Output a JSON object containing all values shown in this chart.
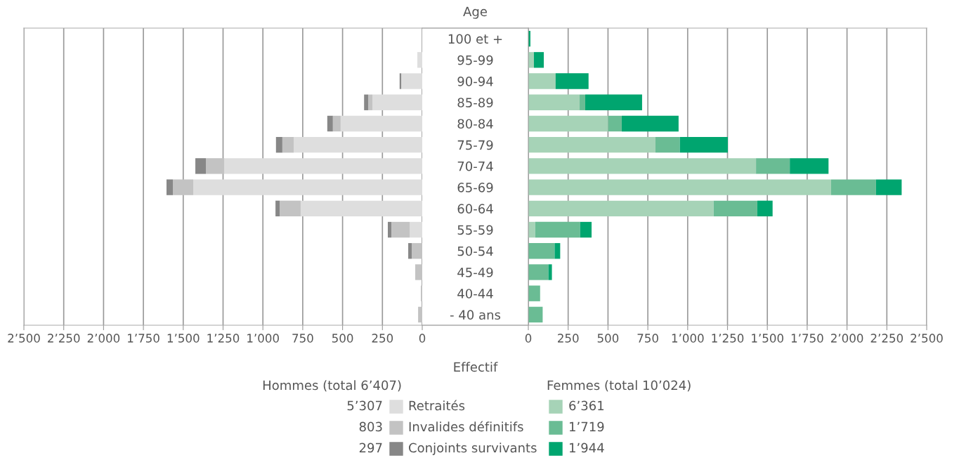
{
  "chart_data": [
    {
      "type": "bar",
      "orientation": "horizontal",
      "stacked": true,
      "title": "Age",
      "xlabel": "Effectif",
      "legend_title": "Hommes (total 6’407)",
      "legend": "bottom",
      "grid": "x",
      "categories": [
        "100 et +",
        "95-99",
        "90-94",
        "85-89",
        "80-84",
        "75-79",
        "70-74",
        "65-69",
        "60-64",
        "55-59",
        "50-54",
        "45-49",
        "40-44",
        "- 40 ans"
      ],
      "series": [
        {
          "name": "Retraités",
          "color": "#dedede",
          "values": [
            null,
            31,
            132,
            313,
            512,
            807,
            1243,
            1437,
            763,
            79,
            0,
            0,
            0,
            0
          ]
        },
        {
          "name": "Invalides définitifs",
          "color": "#c3c3c3",
          "values": [
            0,
            0,
            0,
            26,
            49,
            71,
            115,
            128,
            132,
            115,
            66,
            44,
            9,
            26
          ]
        },
        {
          "name": "Conjoints survivants",
          "color": "#878787",
          "values": [
            0,
            0,
            10,
            26,
            35,
            40,
            66,
            40,
            26,
            22,
            22,
            0,
            0,
            0
          ]
        }
      ],
      "xlim": [
        2500,
        0
      ],
      "xticks": [
        {
          "value": 2500,
          "label": "2’500"
        },
        {
          "value": 2250,
          "label": "2’250"
        },
        {
          "value": 2000,
          "label": "2’000"
        },
        {
          "value": 1750,
          "label": "1’750"
        },
        {
          "value": 1500,
          "label": "1’500"
        },
        {
          "value": 1250,
          "label": "1’250"
        },
        {
          "value": 1000,
          "label": "1’000"
        },
        750,
        500,
        250,
        0
      ],
      "annotations": [
        "5’307",
        "803",
        "297"
      ]
    },
    {
      "type": "bar",
      "orientation": "horizontal",
      "stacked": true,
      "legend_title": "Femmes (total 10’024)",
      "grid": "x",
      "tick_labels": "x",
      "categories": [
        null,
        null,
        null,
        null,
        null,
        null,
        null,
        null,
        null,
        null,
        null,
        null,
        null,
        null
      ],
      "series": [
        {
          "color": "#a6d3b7",
          "values": [
            0,
            35,
            171,
            322,
            501,
            798,
            1429,
            1900,
            1163,
            43,
            0,
            0,
            0,
            0
          ]
        },
        {
          "color": "#6abc94",
          "values": [
            0,
            0,
            0,
            35,
            85,
            153,
            212,
            282,
            274,
            282,
            165,
            126,
            74,
            90
          ]
        },
        {
          "color": "#00a56f",
          "values": [
            13,
            62,
            207,
            357,
            357,
            301,
            243,
            161,
            96,
            72,
            35,
            22,
            0,
            0
          ]
        }
      ],
      "xlim": [
        0,
        2500
      ],
      "xticks": [
        0,
        250,
        500,
        750,
        {
          "value": 1000,
          "label": "1’000"
        },
        {
          "value": 1250,
          "label": "1’250"
        },
        {
          "value": 1500,
          "label": "1’500"
        },
        {
          "value": 1750,
          "label": "1’750"
        },
        {
          "value": 2000,
          "label": "2’000"
        },
        {
          "value": 2250,
          "label": "2’250"
        },
        {
          "value": 2500,
          "label": "2’500"
        }
      ],
      "annotations": [
        "6’361",
        "1’719",
        "1’944"
      ]
    }
  ]
}
